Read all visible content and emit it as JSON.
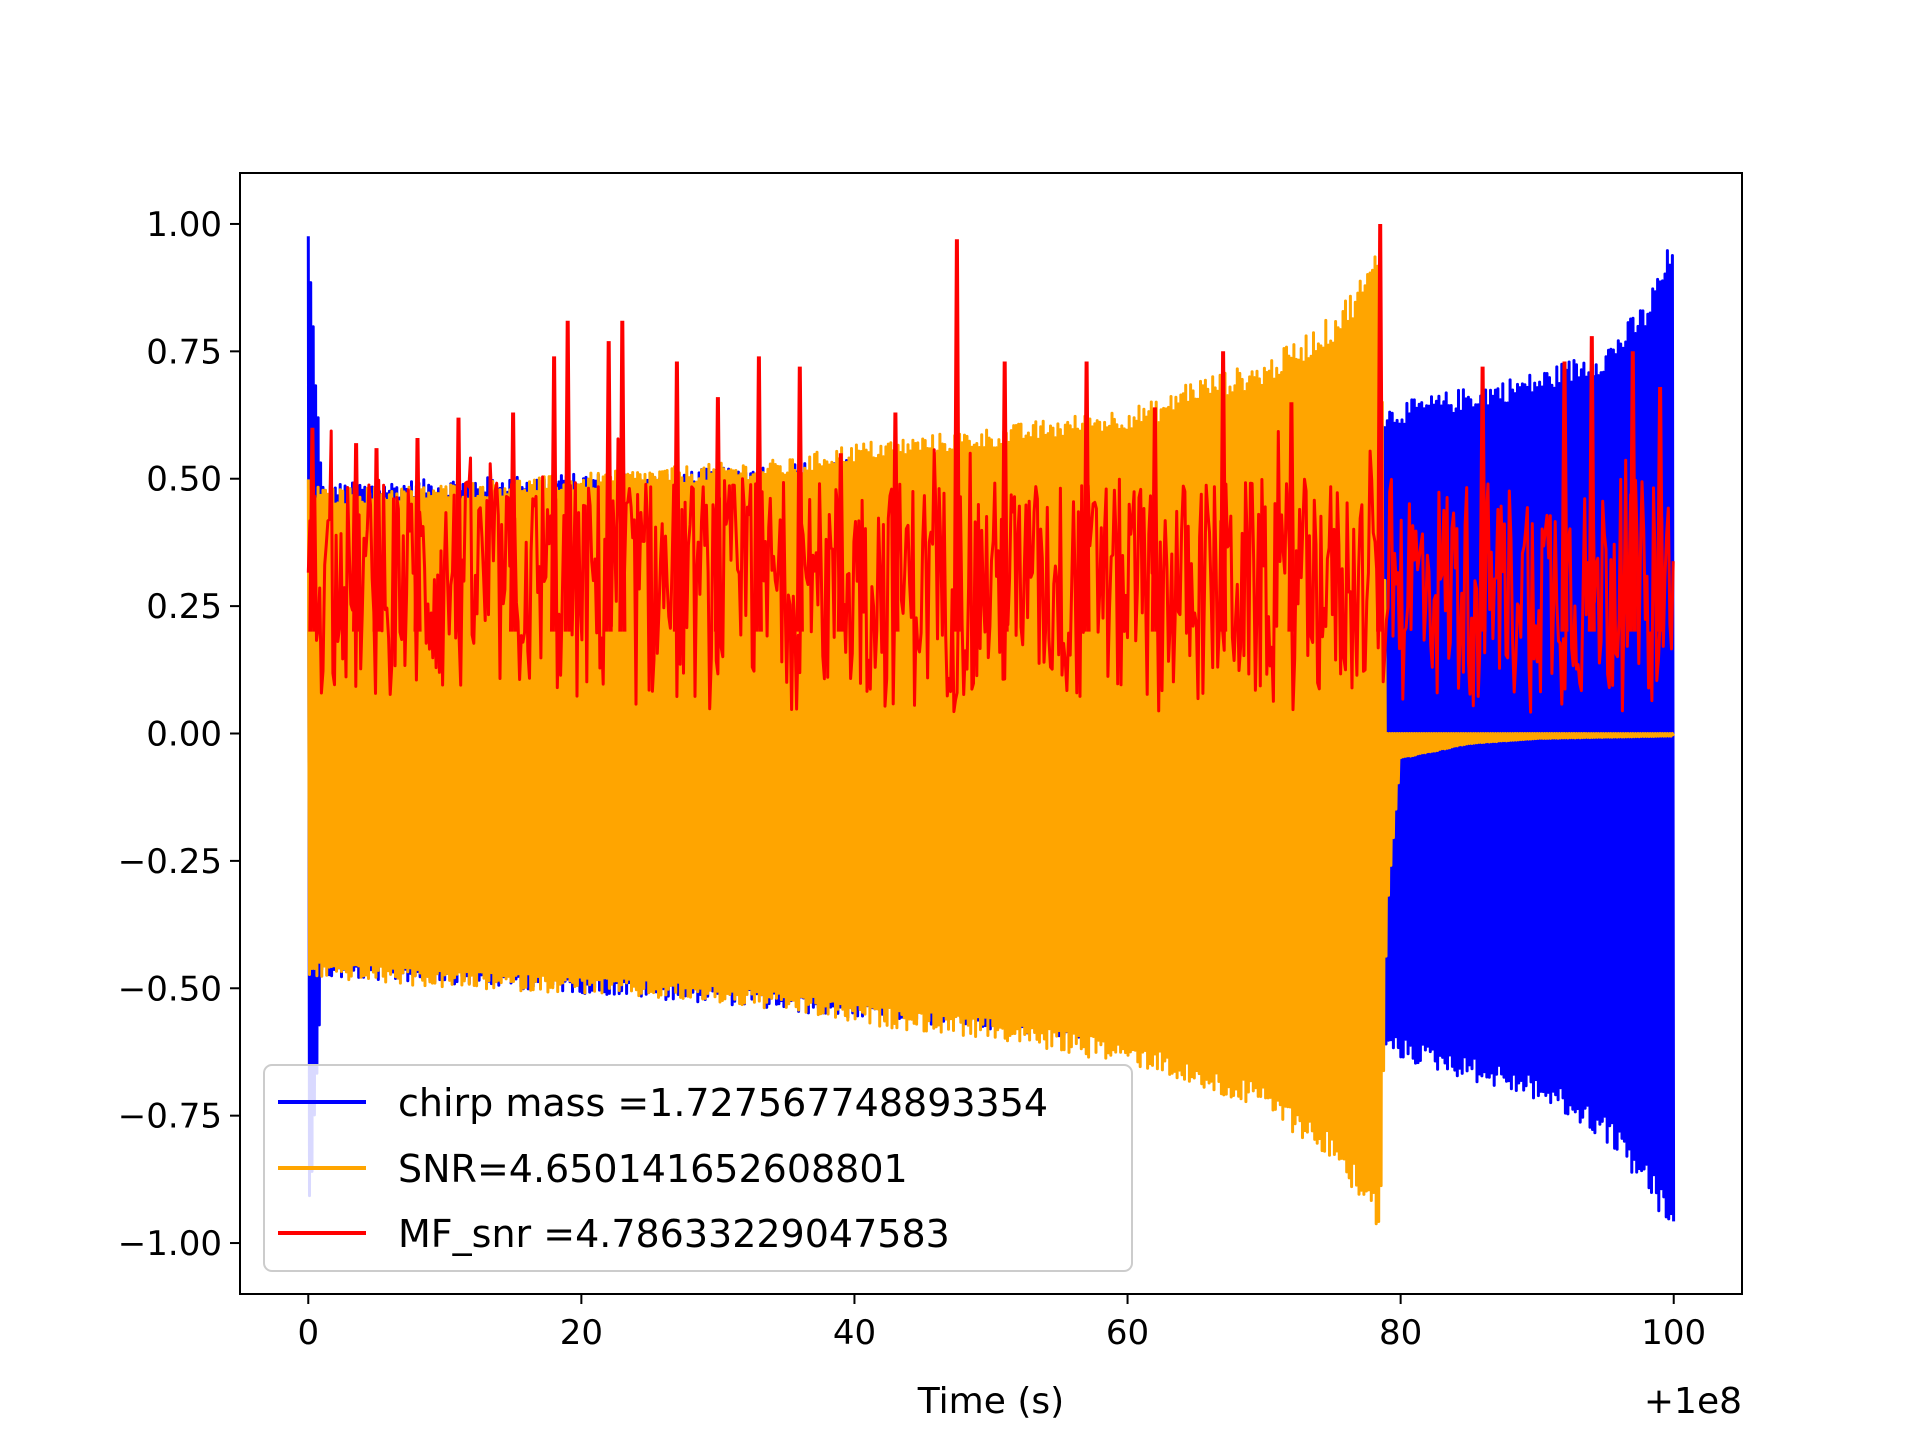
{
  "chart_data": {
    "type": "line",
    "title": "",
    "xlabel": "Time (s)",
    "ylabel": "",
    "x_offset_label": "+1e8",
    "xlim": [
      -5,
      105
    ],
    "ylim": [
      -1.1,
      1.1
    ],
    "x_ticks": [
      0,
      20,
      40,
      60,
      80,
      100
    ],
    "x_tick_labels": [
      "0",
      "20",
      "40",
      "60",
      "80",
      "100"
    ],
    "y_ticks": [
      1.0,
      0.75,
      0.5,
      0.25,
      0.0,
      -0.25,
      -0.5,
      -0.75,
      -1.0
    ],
    "y_tick_labels": [
      "1.00",
      "0.75",
      "0.50",
      "0.25",
      "0.00",
      "−0.25",
      "−0.50",
      "−0.75",
      "−1.00"
    ],
    "grid": false,
    "legend_position": "lower-left",
    "series": [
      {
        "name": "chirp mass =1.727567748893354",
        "color": "#0000ff",
        "envelope_x": [
          0,
          1,
          10,
          20,
          30,
          40,
          50,
          60,
          70,
          78,
          79,
          80,
          85,
          90,
          95,
          98,
          100
        ],
        "envelope_upper": [
          1.0,
          0.49,
          0.5,
          0.51,
          0.52,
          0.54,
          0.56,
          0.58,
          0.61,
          0.64,
          0.64,
          0.65,
          0.68,
          0.71,
          0.76,
          0.85,
          0.98
        ],
        "envelope_lower": [
          -1.0,
          -0.48,
          -0.49,
          -0.51,
          -0.53,
          -0.56,
          -0.58,
          -0.61,
          -0.63,
          -0.63,
          -0.63,
          -0.64,
          -0.68,
          -0.72,
          -0.8,
          -0.9,
          -1.0
        ]
      },
      {
        "name": "SNR=4.650141652608801",
        "color": "#ffa500",
        "envelope_x": [
          0,
          1,
          10,
          20,
          30,
          36,
          38,
          40,
          50,
          60,
          63,
          64,
          70,
          75,
          78,
          78.5,
          79,
          80,
          85,
          90,
          100
        ],
        "envelope_upper": [
          0.5,
          0.48,
          0.49,
          0.51,
          0.53,
          0.54,
          0.56,
          0.57,
          0.6,
          0.64,
          0.66,
          0.69,
          0.73,
          0.82,
          0.93,
          1.0,
          0.0,
          0.0,
          0.0,
          0.0,
          0.0
        ],
        "envelope_lower": [
          -0.48,
          -0.48,
          -0.5,
          -0.51,
          -0.53,
          -0.55,
          -0.56,
          -0.57,
          -0.6,
          -0.65,
          -0.67,
          -0.69,
          -0.74,
          -0.84,
          -0.95,
          -1.0,
          -0.36,
          -0.05,
          -0.02,
          -0.01,
          -0.005
        ]
      },
      {
        "name": "MF_snr =4.78633229047583",
        "color": "#ff0000",
        "baseline_range": [
          0.04,
          0.5
        ],
        "spikes": [
          {
            "x": 0.3,
            "y": 0.6
          },
          {
            "x": 3.5,
            "y": 0.57
          },
          {
            "x": 5,
            "y": 0.56
          },
          {
            "x": 8,
            "y": 0.58
          },
          {
            "x": 11,
            "y": 0.62
          },
          {
            "x": 15,
            "y": 0.63
          },
          {
            "x": 18,
            "y": 0.74
          },
          {
            "x": 19,
            "y": 0.81
          },
          {
            "x": 22,
            "y": 0.77
          },
          {
            "x": 23,
            "y": 0.81
          },
          {
            "x": 27,
            "y": 0.73
          },
          {
            "x": 30,
            "y": 0.66
          },
          {
            "x": 33,
            "y": 0.74
          },
          {
            "x": 36,
            "y": 0.72
          },
          {
            "x": 39,
            "y": 0.55
          },
          {
            "x": 43,
            "y": 0.63
          },
          {
            "x": 47.5,
            "y": 0.97
          },
          {
            "x": 51,
            "y": 0.73
          },
          {
            "x": 57,
            "y": 0.73
          },
          {
            "x": 62,
            "y": 0.64
          },
          {
            "x": 67,
            "y": 0.75
          },
          {
            "x": 72,
            "y": 0.65
          },
          {
            "x": 78.5,
            "y": 1.0
          },
          {
            "x": 86,
            "y": 0.72
          },
          {
            "x": 92,
            "y": 0.73
          },
          {
            "x": 94,
            "y": 0.78
          },
          {
            "x": 97,
            "y": 0.75
          },
          {
            "x": 99,
            "y": 0.68
          }
        ]
      }
    ]
  }
}
